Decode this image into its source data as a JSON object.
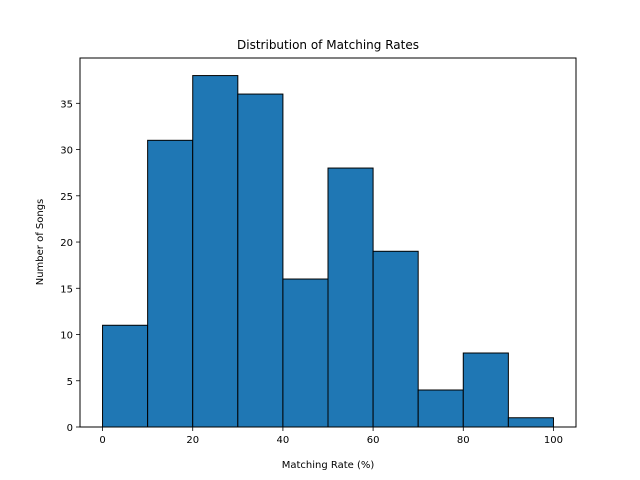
{
  "chart_data": {
    "type": "bar",
    "title": "Distribution of Matching Rates",
    "xlabel": "Matching Rate (%)",
    "ylabel": "Number of Songs",
    "bins": [
      {
        "start": 0,
        "end": 10,
        "value": 11
      },
      {
        "start": 10,
        "end": 20,
        "value": 31
      },
      {
        "start": 20,
        "end": 30,
        "value": 38
      },
      {
        "start": 30,
        "end": 40,
        "value": 36
      },
      {
        "start": 40,
        "end": 50,
        "value": 16
      },
      {
        "start": 50,
        "end": 60,
        "value": 28
      },
      {
        "start": 60,
        "end": 70,
        "value": 19
      },
      {
        "start": 70,
        "end": 80,
        "value": 4
      },
      {
        "start": 80,
        "end": 90,
        "value": 8
      },
      {
        "start": 90,
        "end": 100,
        "value": 1
      }
    ],
    "xlim": [
      -5,
      105
    ],
    "ylim": [
      0,
      39.9
    ],
    "xticks": [
      0,
      20,
      40,
      60,
      80,
      100
    ],
    "yticks": [
      0,
      5,
      10,
      15,
      20,
      25,
      30,
      35
    ],
    "bar_color": "#1f77b4",
    "edge_color": "#000000",
    "grid": false,
    "legend": "none"
  }
}
